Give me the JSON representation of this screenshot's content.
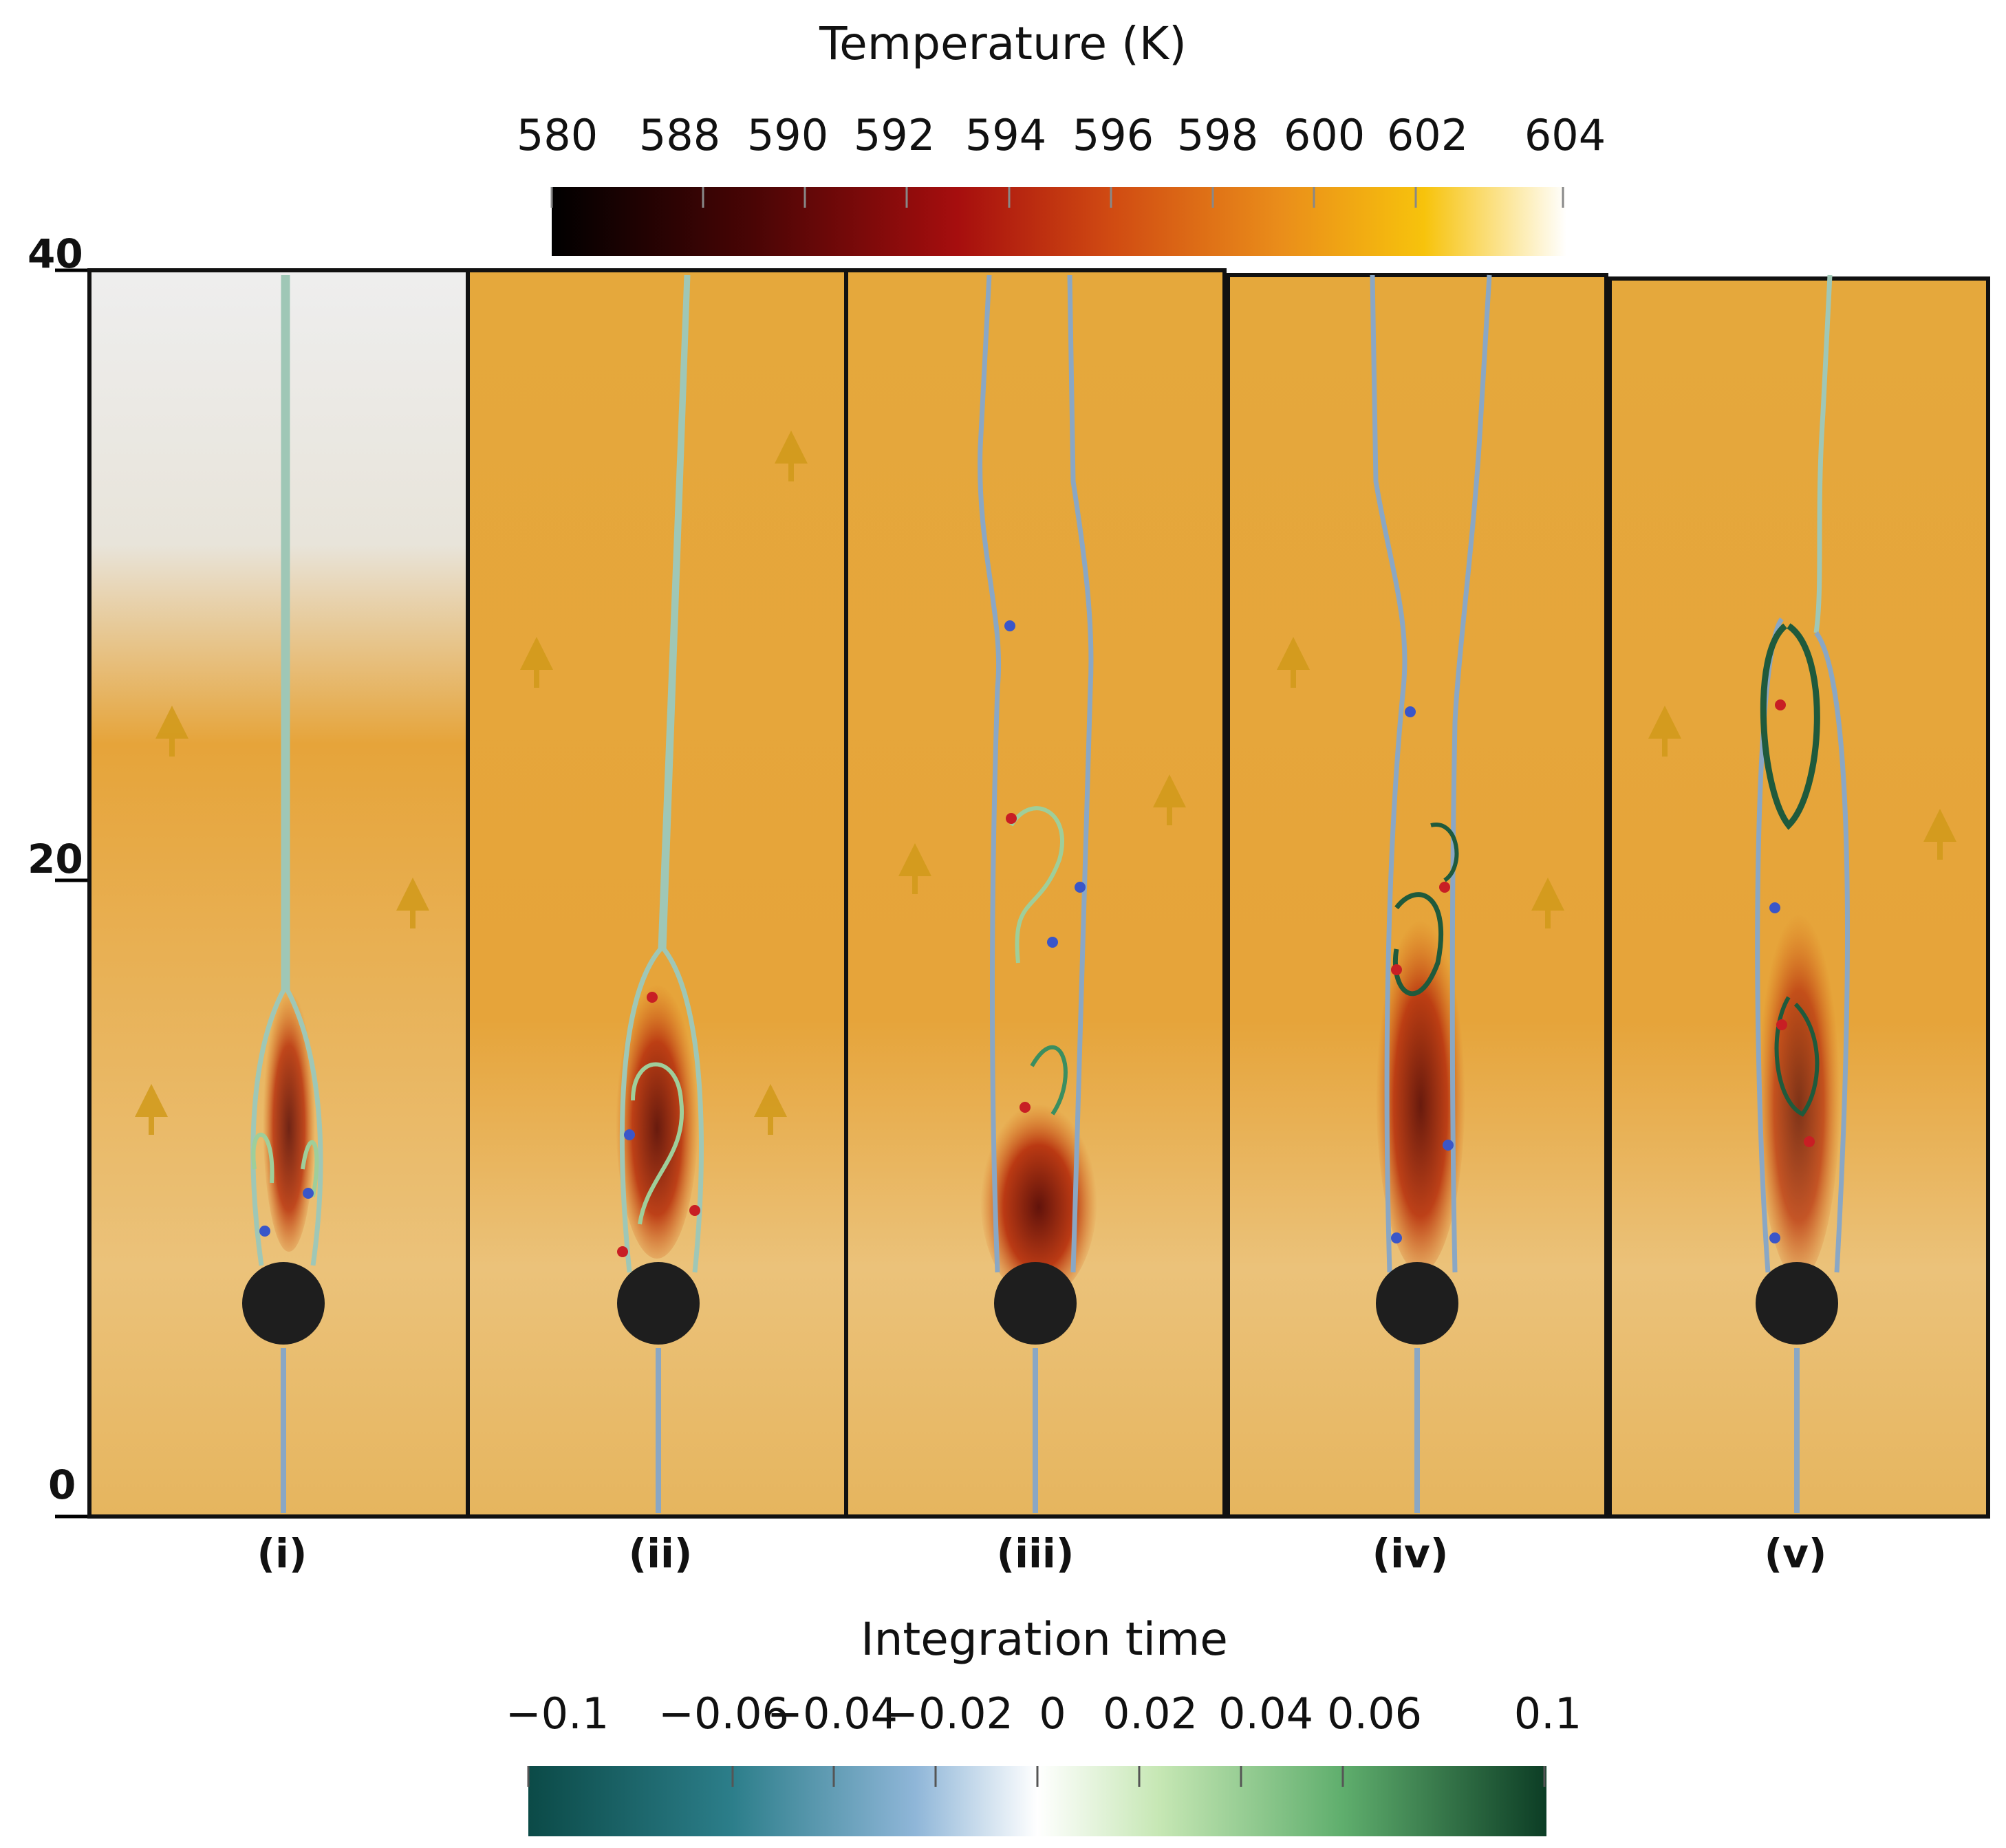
{
  "temperature_colorbar": {
    "title": "Temperature (K)",
    "ticks": [
      "580",
      "588",
      "590",
      "592",
      "594",
      "596",
      "598",
      "600",
      "602",
      "604"
    ]
  },
  "y_axis": {
    "ticks": [
      "40",
      "20",
      "0"
    ]
  },
  "panels": [
    {
      "label": "(i)"
    },
    {
      "label": "(ii)"
    },
    {
      "label": "(iii)"
    },
    {
      "label": "(iv)"
    },
    {
      "label": "(v)"
    }
  ],
  "integration_colorbar": {
    "title": "Integration time",
    "ticks": [
      "−0.1",
      "−0.06",
      "−0.04",
      "−0.02",
      "0",
      "0.02",
      "0.04",
      "0.06",
      "0.1"
    ]
  },
  "colors": {
    "background_flow": "#e6a43a",
    "cylinder": "#1e1e1e",
    "wake_hot": "#b8330f",
    "streamline_backward": "#8aa7c4",
    "streamline_forward": "#9fce9a"
  }
}
